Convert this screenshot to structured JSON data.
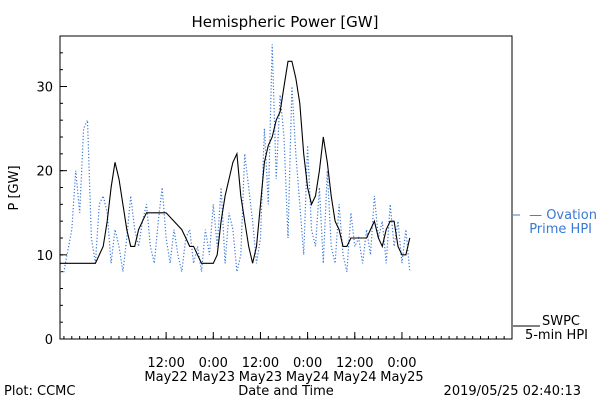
{
  "chart_data": {
    "type": "line",
    "title": "Hemispheric Power [GW]",
    "xlabel": "Date and Time",
    "ylabel": "P [GW]",
    "ylim": [
      0,
      36
    ],
    "xlim_hours": [
      -15,
      100
    ],
    "yticks": [
      0,
      10,
      20,
      30
    ],
    "xticks": [
      {
        "hour": 12,
        "time": "12:00",
        "date": "May22"
      },
      {
        "hour": 24,
        "time": "0:00",
        "date": "May23"
      },
      {
        "hour": 36,
        "time": "12:00",
        "date": "May23"
      },
      {
        "hour": 48,
        "time": "0:00",
        "date": "May24"
      },
      {
        "hour": 60,
        "time": "12:00",
        "date": "May24"
      },
      {
        "hour": 72,
        "time": "0:00",
        "date": "May25"
      }
    ],
    "series": [
      {
        "name": "SWPC 5-min HPI",
        "label_lines": [
          "SWPC",
          "5-min HPI"
        ],
        "color": "#000000",
        "style": "solid",
        "x": [
          -15,
          -10,
          -6,
          -4,
          -3,
          -2,
          -1,
          0,
          1,
          2,
          3,
          4,
          5,
          6,
          7,
          8,
          10,
          12,
          14,
          16,
          17,
          18,
          19,
          21,
          22,
          23,
          24,
          25,
          26,
          27,
          28,
          29,
          30,
          31,
          32,
          33,
          34,
          35,
          36,
          37,
          38,
          39,
          40,
          41,
          42,
          43,
          44,
          45,
          46,
          47,
          48,
          49,
          50,
          51,
          52,
          53,
          54,
          55,
          56,
          57,
          58,
          59,
          60,
          62,
          63,
          64,
          65,
          66,
          67,
          68,
          69,
          70,
          71,
          72,
          73,
          74
        ],
        "y": [
          9,
          9,
          9,
          11,
          14,
          18,
          21,
          19,
          16,
          13,
          11,
          11,
          13,
          14,
          15,
          15,
          15,
          15,
          14,
          13,
          12,
          11,
          11,
          9,
          9,
          9,
          9,
          10,
          14,
          17,
          19,
          21,
          22,
          17,
          14,
          11,
          9,
          11,
          16,
          21,
          23,
          24,
          26,
          27,
          30,
          33,
          33,
          31,
          28,
          22,
          18,
          16,
          17,
          20,
          24,
          21,
          17,
          14,
          13,
          11,
          11,
          12,
          12,
          12,
          12,
          13,
          14,
          12,
          11,
          13,
          14,
          14,
          11,
          10,
          10,
          12
        ]
      },
      {
        "name": "Ovation Prime HPI",
        "label_lines": [
          "— Ovation",
          "Prime HPI"
        ],
        "color": "#3a78d6",
        "style": "dotted",
        "x": [
          -15,
          -14,
          -12,
          -11,
          -10,
          -9,
          -8,
          -7,
          -6,
          -5,
          -4,
          -3,
          -2,
          -1,
          0,
          1,
          2,
          3,
          4,
          5,
          6,
          7,
          8,
          9,
          10,
          11,
          12,
          13,
          14,
          15,
          16,
          17,
          18,
          19,
          20,
          21,
          22,
          23,
          24,
          25,
          26,
          27,
          28,
          29,
          30,
          31,
          32,
          33,
          34,
          35,
          36,
          37,
          38,
          39,
          40,
          41,
          42,
          43,
          44,
          45,
          46,
          47,
          48,
          49,
          50,
          51,
          52,
          53,
          54,
          55,
          56,
          57,
          58,
          59,
          60,
          61,
          62,
          63,
          64,
          65,
          66,
          67,
          68,
          69,
          70,
          71,
          72,
          73,
          74
        ],
        "y": [
          8,
          8,
          13,
          20,
          15,
          25,
          26,
          12,
          9,
          16,
          17,
          15,
          9,
          13,
          11,
          8,
          12,
          17,
          13,
          11,
          14,
          16,
          11,
          9,
          14,
          18,
          12,
          9,
          13,
          10,
          8,
          12,
          13,
          9,
          11,
          8,
          13,
          10,
          16,
          11,
          18,
          9,
          15,
          13,
          8,
          10,
          22,
          18,
          14,
          9,
          12,
          25,
          16,
          35,
          19,
          29,
          24,
          12,
          30,
          22,
          16,
          10,
          23,
          13,
          11,
          18,
          9,
          20,
          11,
          9,
          16,
          10,
          8,
          15,
          11,
          12,
          9,
          13,
          10,
          17,
          12,
          14,
          9,
          16,
          11,
          14,
          9,
          13,
          8
        ]
      }
    ]
  },
  "footer": {
    "plot_credit": "Plot: CCMC",
    "timestamp": "2019/05/25 02:40:13"
  }
}
